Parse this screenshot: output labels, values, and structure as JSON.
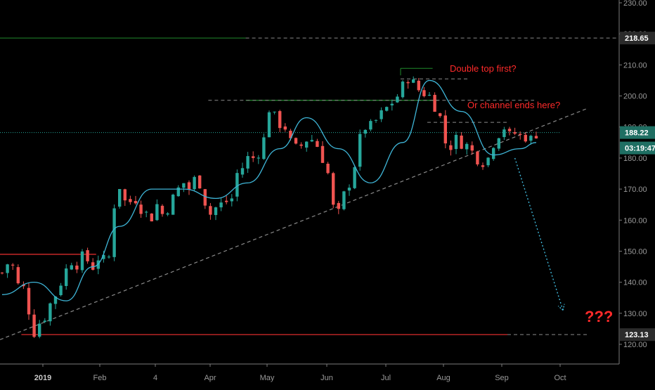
{
  "colors": {
    "background": "#000000",
    "up": "#26a69a",
    "down": "#ef5350",
    "ma": "#3fb6d8",
    "level_green": "#1f8a2c",
    "level_red": "#c62828",
    "annotation": "#ff2a2a",
    "dashed": "#8a8a8a",
    "current_price_line": "#26a69a",
    "tag_dark": "#2b2b2b",
    "tag_teal": "#1f6f63"
  },
  "price_tags": {
    "resistance": "218.65",
    "current": "188.22",
    "countdown": "03:19:47",
    "support": "123.13"
  },
  "annotations": {
    "double_top": "Double top first?",
    "channel_end": "Or channel ends here?",
    "question": "???"
  },
  "chart_data": {
    "type": "candlestick",
    "title": "",
    "y_axis": {
      "range": [
        116,
        233
      ],
      "ticks": [
        120,
        130,
        140,
        150,
        160,
        170,
        180,
        190,
        200,
        210,
        220,
        230
      ],
      "tick_labels": [
        "120.00",
        "130.00",
        "140.00",
        "150.00",
        "160.00",
        "170.00",
        "180.00",
        "190.00",
        "200.00",
        "210.00",
        "220.00",
        "230.00"
      ]
    },
    "x_axis": {
      "labels": [
        "2019",
        "Feb",
        "4",
        "Apr",
        "May",
        "Jun",
        "Jul",
        "Aug",
        "Sep",
        "Oct"
      ],
      "bold_labels": [
        "2019"
      ]
    },
    "ohlc_anchor_closes": [
      143,
      146,
      145,
      139,
      138,
      131,
      124,
      127,
      129,
      133,
      136,
      140,
      144,
      147,
      146,
      148,
      147,
      145,
      148,
      147,
      148,
      165,
      171,
      166,
      166,
      167,
      164,
      162,
      161,
      165,
      162,
      164,
      167,
      170,
      172,
      170,
      173,
      172,
      166,
      162,
      164,
      165,
      166,
      167,
      175,
      177,
      180,
      180,
      182,
      186,
      196,
      193,
      191,
      190,
      185,
      183,
      184,
      186,
      186,
      184,
      180,
      175,
      164,
      162,
      168,
      172,
      178,
      186,
      190,
      190,
      192,
      194,
      196,
      198,
      200,
      203,
      206,
      204,
      202,
      201,
      200,
      197,
      193,
      185,
      184,
      186,
      185,
      184,
      182,
      180,
      179,
      180,
      185,
      188,
      190,
      187,
      188,
      187,
      187,
      186,
      188
    ],
    "moving_average": [
      [
        0,
        136
      ],
      [
        6,
        140
      ],
      [
        12,
        134
      ],
      [
        17,
        145
      ],
      [
        22,
        158
      ],
      [
        28,
        170
      ],
      [
        34,
        170
      ],
      [
        40,
        167
      ],
      [
        46,
        172
      ],
      [
        52,
        183
      ],
      [
        57,
        193
      ],
      [
        63,
        183
      ],
      [
        69,
        172
      ],
      [
        75,
        185
      ],
      [
        80,
        205
      ],
      [
        86,
        195
      ],
      [
        92,
        181
      ],
      [
        97,
        183
      ],
      [
        100,
        185
      ]
    ],
    "levels": [
      {
        "name": "resistance",
        "value": 218.65,
        "from": 0,
        "to": 100
      },
      {
        "name": "double_top_line",
        "value": 208.9,
        "from": 75,
        "to": 81
      },
      {
        "name": "double_top_dashed",
        "value": 205.5,
        "from": 75,
        "to": 88
      },
      {
        "name": "may_top_green",
        "value": 198.6,
        "from": 46,
        "to": 82
      },
      {
        "name": "may_top_dashed",
        "value": 198.6,
        "from": 39,
        "to": 100
      },
      {
        "name": "current",
        "value": 188.22,
        "from": 0,
        "to": 105
      },
      {
        "name": "channel_top_dashed",
        "value": 191.5,
        "from": 80,
        "to": 95
      },
      {
        "name": "feb_resistance_red",
        "value": 149.0,
        "from": 0,
        "to": 18
      },
      {
        "name": "support",
        "value": 123.13,
        "from": 4,
        "to": 95
      },
      {
        "name": "support_dashed",
        "value": 123.13,
        "from": 95,
        "to": 110
      }
    ],
    "trendline": [
      [
        0,
        121.5
      ],
      [
        110,
        196
      ]
    ],
    "projection_arrow": [
      [
        96,
        180
      ],
      [
        105,
        131
      ]
    ]
  }
}
